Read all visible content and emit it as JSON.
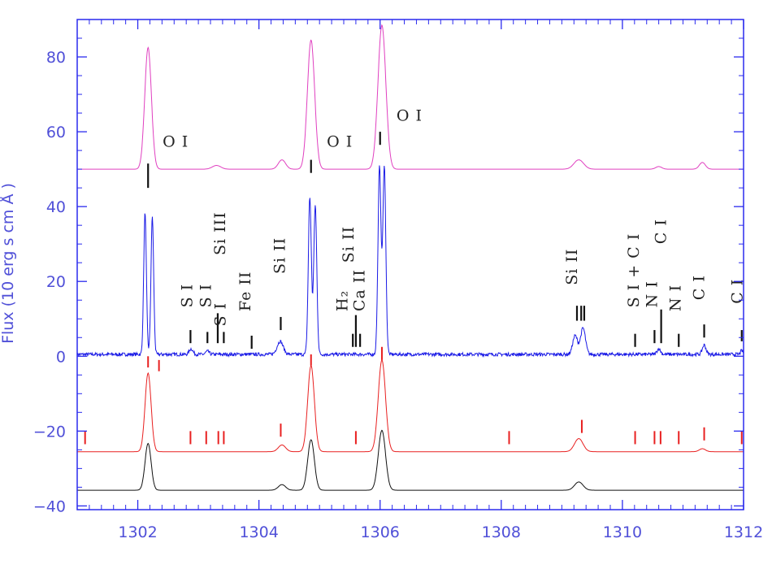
{
  "chart_data": {
    "type": "line",
    "title": "",
    "xlabel": "",
    "ylabel": "Flux (10   erg s   cm   Å  )",
    "xlim": [
      1301.0,
      1312.0
    ],
    "ylim": [
      -41,
      90
    ],
    "x_ticks": [
      1302,
      1304,
      1306,
      1308,
      1310,
      1312
    ],
    "y_ticks": [
      -40,
      -20,
      0,
      20,
      40,
      60,
      80
    ],
    "x_tick_labels": [
      "1302",
      "1304",
      "1306",
      "1308",
      "1310",
      "1312"
    ],
    "y_tick_labels": [
      "−40",
      "−20",
      "0",
      "20",
      "40",
      "60",
      "80"
    ],
    "grid": false,
    "colors": {
      "axis": "#2a2aee",
      "tick_text": "#5050d8",
      "magenta": "#e040c0",
      "blue": "#1a1ae6",
      "red": "#e82020",
      "black": "#111111",
      "annotation": "#222222"
    },
    "series": [
      {
        "color": "#e040c0",
        "baseline": 50,
        "peaks": [
          [
            1302.17,
            32.5,
            0.055
          ],
          [
            1303.3,
            1.0,
            0.07
          ],
          [
            1304.38,
            2.5,
            0.06
          ],
          [
            1304.86,
            34.5,
            0.06
          ],
          [
            1306.03,
            38.5,
            0.065
          ],
          [
            1309.28,
            2.5,
            0.08
          ],
          [
            1310.6,
            0.7,
            0.05
          ],
          [
            1311.32,
            1.8,
            0.05
          ]
        ]
      },
      {
        "color": "#1a1ae6",
        "baseline": 0.5,
        "noise": 0.9,
        "peaks": [
          [
            1302.12,
            38,
            0.022
          ],
          [
            1302.24,
            37,
            0.022
          ],
          [
            1302.88,
            1.5,
            0.03
          ],
          [
            1303.15,
            0.8,
            0.03
          ],
          [
            1304.35,
            3.5,
            0.05
          ],
          [
            1304.84,
            42,
            0.025
          ],
          [
            1304.93,
            40,
            0.025
          ],
          [
            1305.99,
            50,
            0.025
          ],
          [
            1306.07,
            50,
            0.025
          ],
          [
            1309.22,
            5,
            0.04
          ],
          [
            1309.35,
            7,
            0.04
          ],
          [
            1310.6,
            1.5,
            0.03
          ],
          [
            1311.35,
            2.5,
            0.03
          ],
          [
            1311.97,
            1.0,
            0.02
          ]
        ]
      },
      {
        "color": "#e82020",
        "baseline": -25.5,
        "peaks": [
          [
            1302.17,
            21,
            0.05
          ],
          [
            1304.38,
            1.8,
            0.06
          ],
          [
            1304.86,
            23,
            0.055
          ],
          [
            1306.03,
            24.5,
            0.06
          ],
          [
            1309.28,
            3.5,
            0.07
          ],
          [
            1311.32,
            0.8,
            0.05
          ]
        ]
      },
      {
        "color": "#111111",
        "baseline": -35.8,
        "peaks": [
          [
            1302.17,
            12.5,
            0.05
          ],
          [
            1304.38,
            1.5,
            0.06
          ],
          [
            1304.86,
            13.5,
            0.055
          ],
          [
            1306.03,
            16,
            0.06
          ],
          [
            1309.28,
            2.2,
            0.07
          ]
        ]
      }
    ],
    "black_markers": [
      {
        "x": 1302.17,
        "y0": 45,
        "y1": 51.5
      },
      {
        "x": 1302.87,
        "y0": 3.5,
        "y1": 7.0
      },
      {
        "x": 1303.15,
        "y0": 3.5,
        "y1": 6.5
      },
      {
        "x": 1303.32,
        "y0": 3.5,
        "y1": 11.5
      },
      {
        "x": 1303.42,
        "y0": 3.5,
        "y1": 6.5
      },
      {
        "x": 1303.88,
        "y0": 2.0,
        "y1": 5.5
      },
      {
        "x": 1304.36,
        "y0": 7.0,
        "y1": 10.5
      },
      {
        "x": 1304.86,
        "y0": 49.0,
        "y1": 52.5
      },
      {
        "x": 1305.55,
        "y0": 2.5,
        "y1": 6.0
      },
      {
        "x": 1305.6,
        "y0": 2.5,
        "y1": 11.0
      },
      {
        "x": 1305.67,
        "y0": 2.5,
        "y1": 6.0
      },
      {
        "x": 1306.0,
        "y0": 56.5,
        "y1": 60.0
      },
      {
        "x": 1309.25,
        "y0": 9.5,
        "y1": 13.5
      },
      {
        "x": 1309.32,
        "y0": 9.5,
        "y1": 13.5
      },
      {
        "x": 1309.37,
        "y0": 9.5,
        "y1": 13.5
      },
      {
        "x": 1310.21,
        "y0": 2.5,
        "y1": 6.0
      },
      {
        "x": 1310.53,
        "y0": 3.5,
        "y1": 7.0
      },
      {
        "x": 1310.64,
        "y0": 3.5,
        "y1": 12.5
      },
      {
        "x": 1310.93,
        "y0": 2.5,
        "y1": 6.0
      },
      {
        "x": 1311.35,
        "y0": 5.0,
        "y1": 8.5
      },
      {
        "x": 1311.97,
        "y0": 4.0,
        "y1": 7.0
      }
    ],
    "red_markers": [
      {
        "x": 1302.17,
        "y0": -3.0,
        "y1": 0.0
      },
      {
        "x": 1302.35,
        "y0": -4.0,
        "y1": -1.0
      },
      {
        "x": 1304.86,
        "y0": -2.5,
        "y1": 0.5
      },
      {
        "x": 1306.03,
        "y0": -1.0,
        "y1": 2.5
      },
      {
        "x": 1301.13,
        "y0": -23.5,
        "y1": -20.0
      },
      {
        "x": 1302.87,
        "y0": -23.5,
        "y1": -20.0
      },
      {
        "x": 1303.13,
        "y0": -23.5,
        "y1": -20.0
      },
      {
        "x": 1303.33,
        "y0": -23.5,
        "y1": -20.0
      },
      {
        "x": 1303.42,
        "y0": -23.5,
        "y1": -20.0
      },
      {
        "x": 1304.36,
        "y0": -21.5,
        "y1": -18.0
      },
      {
        "x": 1305.6,
        "y0": -23.5,
        "y1": -20.0
      },
      {
        "x": 1308.13,
        "y0": -23.5,
        "y1": -20.0
      },
      {
        "x": 1309.33,
        "y0": -20.5,
        "y1": -17.0
      },
      {
        "x": 1310.21,
        "y0": -23.5,
        "y1": -20.0
      },
      {
        "x": 1310.53,
        "y0": -23.5,
        "y1": -20.0
      },
      {
        "x": 1310.63,
        "y0": -23.5,
        "y1": -20.0
      },
      {
        "x": 1310.93,
        "y0": -23.5,
        "y1": -20.0
      },
      {
        "x": 1311.35,
        "y0": -22.5,
        "y1": -19.0
      },
      {
        "x": 1311.97,
        "y0": -23.5,
        "y1": -20.0
      }
    ],
    "annotations": [
      {
        "text": "O I",
        "x": 1302.41,
        "y": 56,
        "rotate": false
      },
      {
        "text": "O I",
        "x": 1305.12,
        "y": 56,
        "rotate": false
      },
      {
        "text": "O I",
        "x": 1306.27,
        "y": 63,
        "rotate": false
      },
      {
        "text": "S I",
        "x": 1302.9,
        "y": 13,
        "rotate": true
      },
      {
        "text": "S I",
        "x": 1303.21,
        "y": 13,
        "rotate": true
      },
      {
        "text": "S I",
        "x": 1303.45,
        "y": 8,
        "rotate": true
      },
      {
        "text": "Si III",
        "x": 1303.44,
        "y": 27,
        "rotate": true
      },
      {
        "text": "Fe II",
        "x": 1303.86,
        "y": 12,
        "rotate": true
      },
      {
        "text": "Si II",
        "x": 1304.43,
        "y": 22,
        "rotate": true
      },
      {
        "text": "H₂",
        "x": 1305.46,
        "y": 12,
        "rotate": true
      },
      {
        "text": "Si II",
        "x": 1305.56,
        "y": 25,
        "rotate": true
      },
      {
        "text": "Ca II",
        "x": 1305.74,
        "y": 12,
        "rotate": true
      },
      {
        "text": "Si II",
        "x": 1309.25,
        "y": 19,
        "rotate": true
      },
      {
        "text": "S I + C I",
        "x": 1310.27,
        "y": 13,
        "rotate": true
      },
      {
        "text": "N I",
        "x": 1310.57,
        "y": 13,
        "rotate": true
      },
      {
        "text": "C I",
        "x": 1310.72,
        "y": 30,
        "rotate": true
      },
      {
        "text": "N I",
        "x": 1310.96,
        "y": 12,
        "rotate": true
      },
      {
        "text": "C I",
        "x": 1311.35,
        "y": 15,
        "rotate": true
      },
      {
        "text": "C I",
        "x": 1311.98,
        "y": 14,
        "rotate": true
      }
    ]
  }
}
